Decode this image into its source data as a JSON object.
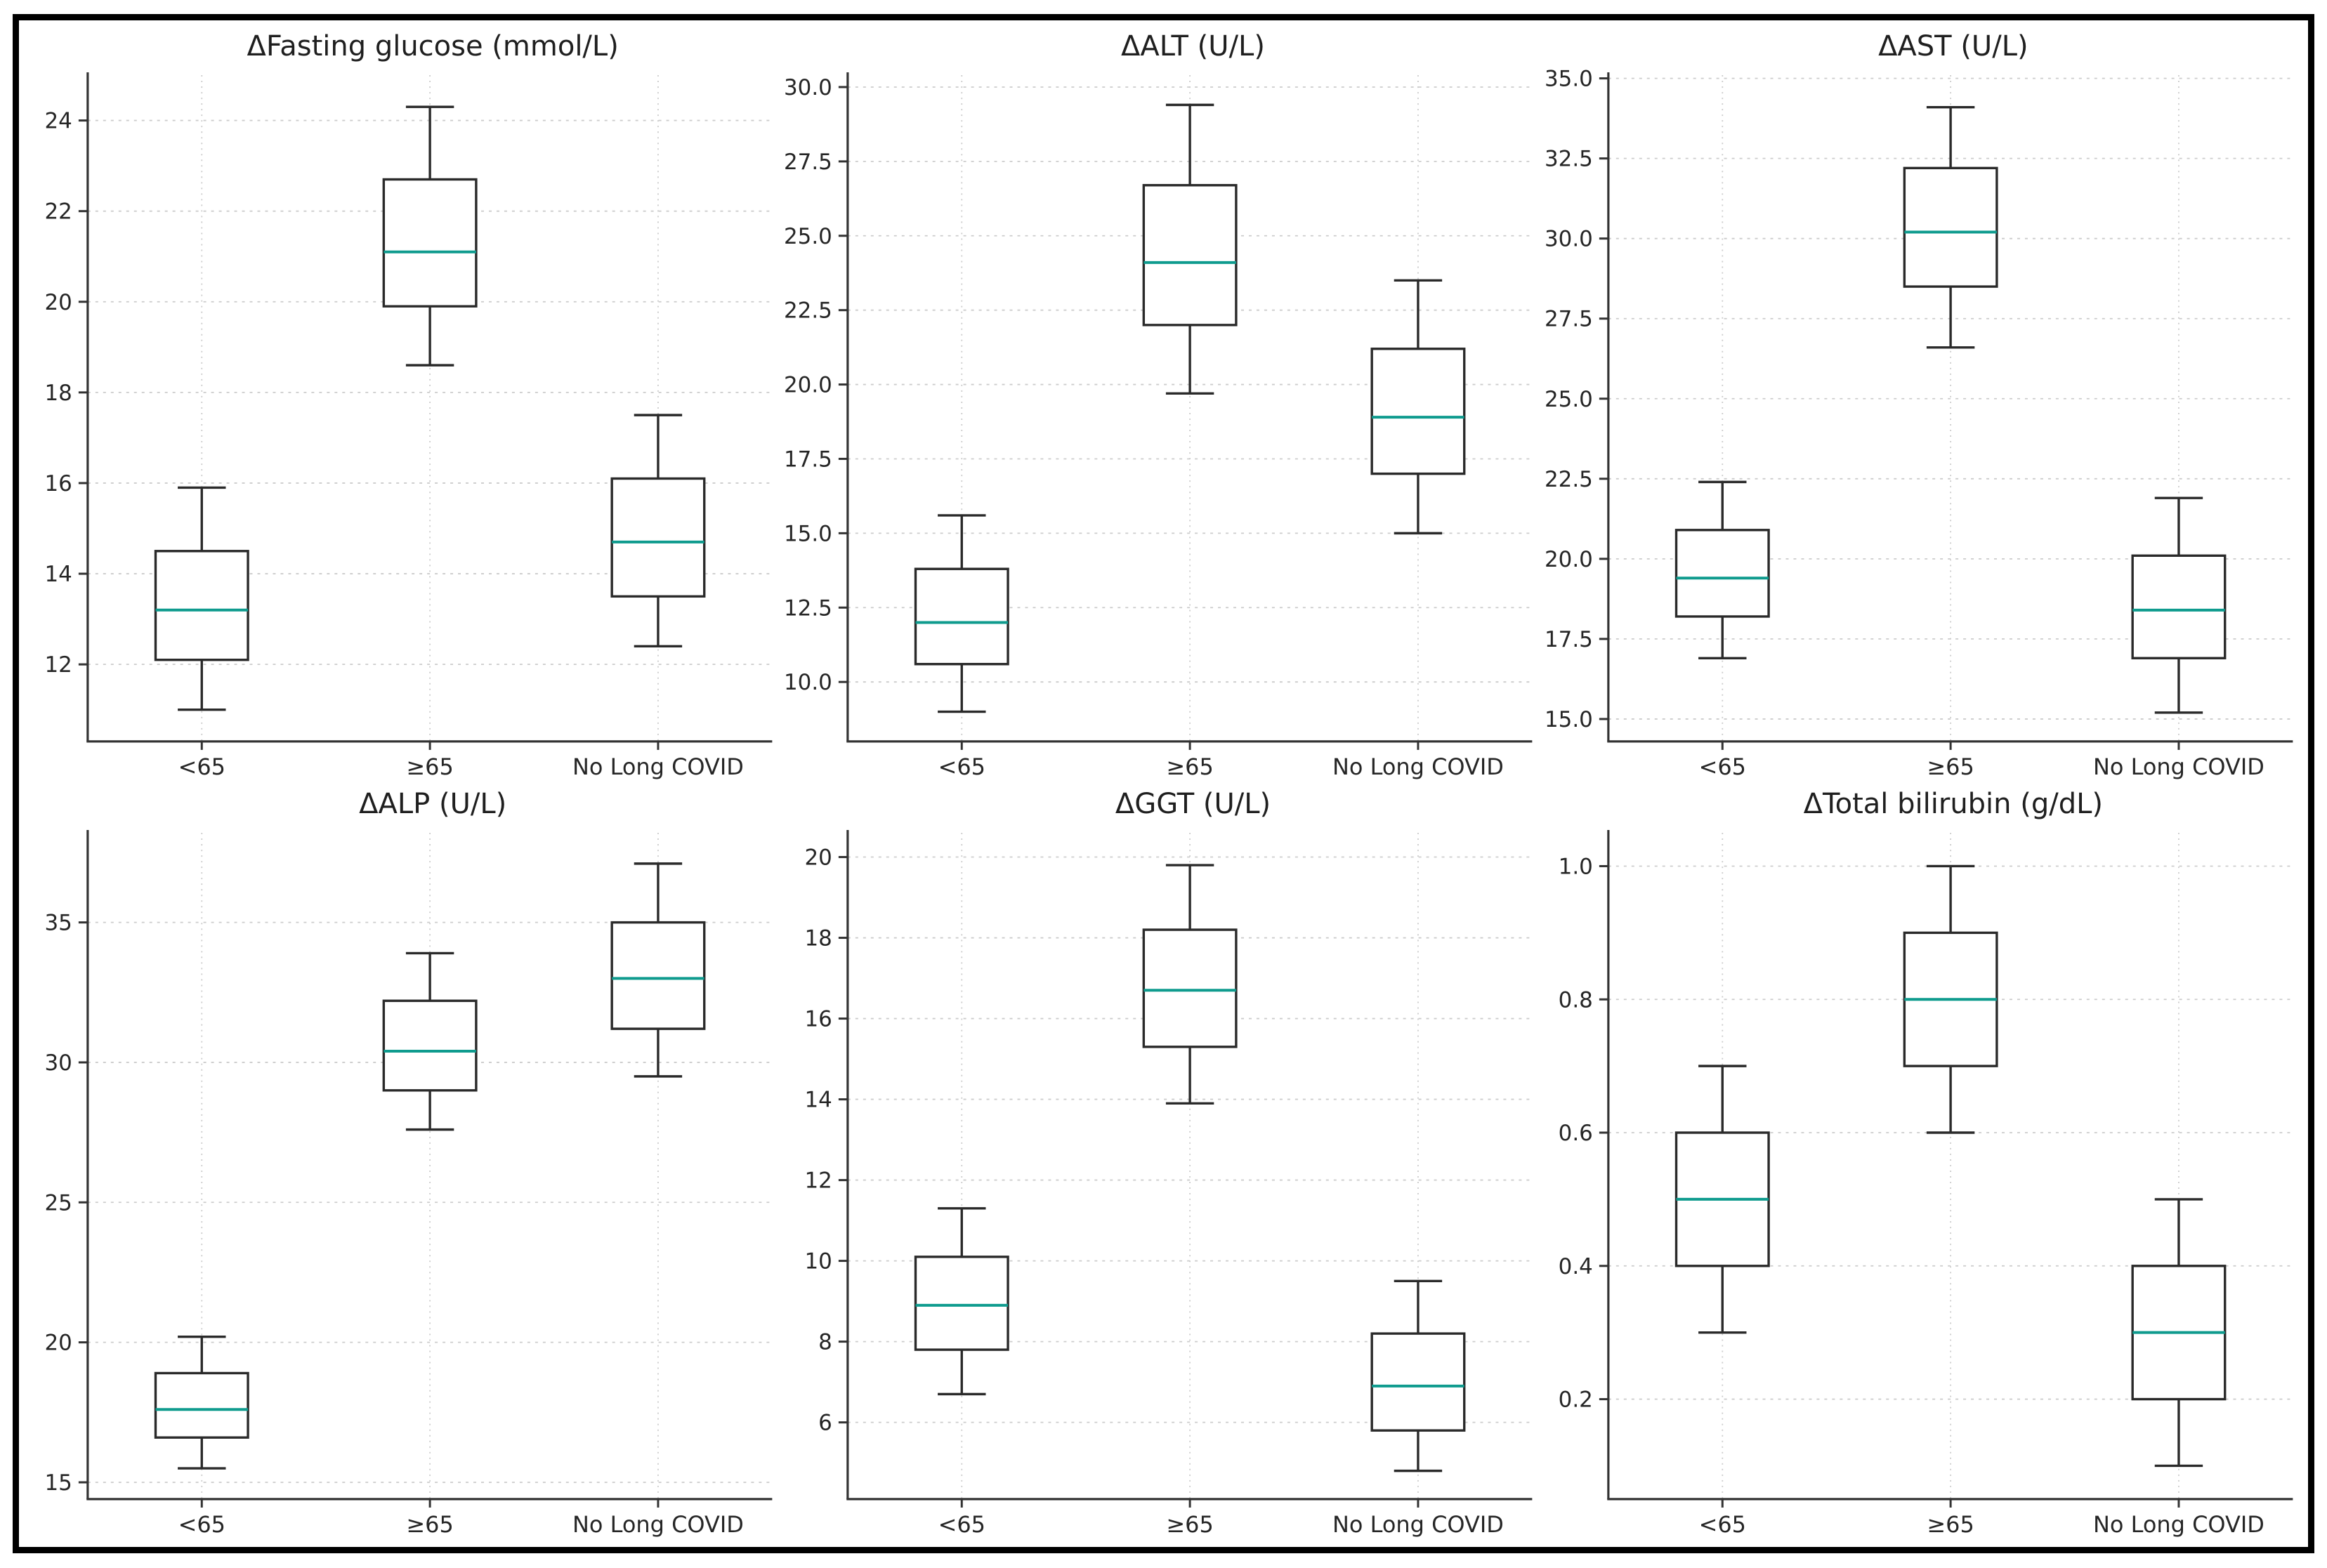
{
  "figure": {
    "background": "#ffffff",
    "border_color": "#000000"
  },
  "style": {
    "median_color": "#0f9b8e",
    "box_color": "#2a2a2a",
    "whisker_color": "#2a2a2a",
    "grid_color": "#cccccc",
    "axis_color": "#333333",
    "text_color": "#262626",
    "box_fill": "#ffffff"
  },
  "categories": [
    "<65",
    "≥65",
    "No Long COVID"
  ],
  "chart_data": [
    {
      "type": "box",
      "title": "ΔFasting glucose (mmol/L)",
      "categories": [
        "<65",
        "≥65",
        "No Long COVID"
      ],
      "grid": true,
      "legend": false,
      "ylim": [
        10.3,
        25.0
      ],
      "yticks": [
        12,
        14,
        16,
        18,
        20,
        22,
        24
      ],
      "ytick_labels": [
        "12",
        "14",
        "16",
        "18",
        "20",
        "22",
        "24"
      ],
      "boxes": [
        {
          "category": "<65",
          "whislo": 11.0,
          "q1": 12.1,
          "med": 13.2,
          "q3": 14.5,
          "whishi": 15.9
        },
        {
          "category": "≥65",
          "whislo": 18.6,
          "q1": 19.9,
          "med": 21.1,
          "q3": 22.7,
          "whishi": 24.3
        },
        {
          "category": "No Long COVID",
          "whislo": 12.4,
          "q1": 13.5,
          "med": 14.7,
          "q3": 16.1,
          "whishi": 17.5
        }
      ]
    },
    {
      "type": "box",
      "title": "ΔALT (U/L)",
      "categories": [
        "<65",
        "≥65",
        "No Long COVID"
      ],
      "grid": true,
      "legend": false,
      "ylim": [
        8.0,
        30.4
      ],
      "yticks": [
        10.0,
        12.5,
        15.0,
        17.5,
        20.0,
        22.5,
        25.0,
        27.5,
        30.0
      ],
      "ytick_labels": [
        "10.0",
        "12.5",
        "15.0",
        "17.5",
        "20.0",
        "22.5",
        "25.0",
        "27.5",
        "30.0"
      ],
      "boxes": [
        {
          "category": "<65",
          "whislo": 9.0,
          "q1": 10.6,
          "med": 12.0,
          "q3": 13.8,
          "whishi": 15.6
        },
        {
          "category": "≥65",
          "whislo": 19.7,
          "q1": 22.0,
          "med": 24.1,
          "q3": 26.7,
          "whishi": 29.4
        },
        {
          "category": "No Long COVID",
          "whislo": 15.0,
          "q1": 17.0,
          "med": 18.9,
          "q3": 21.2,
          "whishi": 23.5
        }
      ]
    },
    {
      "type": "box",
      "title": "ΔAST (U/L)",
      "categories": [
        "<65",
        "≥65",
        "No Long COVID"
      ],
      "grid": true,
      "legend": false,
      "ylim": [
        14.3,
        35.1
      ],
      "yticks": [
        15.0,
        17.5,
        20.0,
        22.5,
        25.0,
        27.5,
        30.0,
        32.5,
        35.0
      ],
      "ytick_labels": [
        "15.0",
        "17.5",
        "20.0",
        "22.5",
        "25.0",
        "27.5",
        "30.0",
        "32.5",
        "35.0"
      ],
      "boxes": [
        {
          "category": "<65",
          "whislo": 16.9,
          "q1": 18.2,
          "med": 19.4,
          "q3": 20.9,
          "whishi": 22.4
        },
        {
          "category": "≥65",
          "whislo": 26.6,
          "q1": 28.5,
          "med": 30.2,
          "q3": 32.2,
          "whishi": 34.1
        },
        {
          "category": "No Long COVID",
          "whislo": 15.2,
          "q1": 16.9,
          "med": 18.4,
          "q3": 20.1,
          "whishi": 21.9
        }
      ]
    },
    {
      "type": "box",
      "title": "ΔALP (U/L)",
      "categories": [
        "<65",
        "≥65",
        "No Long COVID"
      ],
      "grid": true,
      "legend": false,
      "ylim": [
        14.4,
        38.2
      ],
      "yticks": [
        15,
        20,
        25,
        30,
        35
      ],
      "ytick_labels": [
        "15",
        "20",
        "25",
        "30",
        "35"
      ],
      "boxes": [
        {
          "category": "<65",
          "whislo": 15.5,
          "q1": 16.6,
          "med": 17.6,
          "q3": 18.9,
          "whishi": 20.2
        },
        {
          "category": "≥65",
          "whislo": 27.6,
          "q1": 29.0,
          "med": 30.4,
          "q3": 32.2,
          "whishi": 33.9
        },
        {
          "category": "No Long COVID",
          "whislo": 29.5,
          "q1": 31.2,
          "med": 33.0,
          "q3": 35.0,
          "whishi": 37.1
        }
      ]
    },
    {
      "type": "box",
      "title": "ΔGGT (U/L)",
      "categories": [
        "<65",
        "≥65",
        "No Long COVID"
      ],
      "grid": true,
      "legend": false,
      "ylim": [
        4.1,
        20.6
      ],
      "yticks": [
        6,
        8,
        10,
        12,
        14,
        16,
        18,
        20
      ],
      "ytick_labels": [
        "6",
        "8",
        "10",
        "12",
        "14",
        "16",
        "18",
        "20"
      ],
      "boxes": [
        {
          "category": "<65",
          "whislo": 6.7,
          "q1": 7.8,
          "med": 8.9,
          "q3": 10.1,
          "whishi": 11.3
        },
        {
          "category": "≥65",
          "whislo": 13.9,
          "q1": 15.3,
          "med": 16.7,
          "q3": 18.2,
          "whishi": 19.8
        },
        {
          "category": "No Long COVID",
          "whislo": 4.8,
          "q1": 5.8,
          "med": 6.9,
          "q3": 8.2,
          "whishi": 9.5
        }
      ]
    },
    {
      "type": "box",
      "title": "ΔTotal bilirubin (g/dL)",
      "categories": [
        "<65",
        "≥65",
        "No Long COVID"
      ],
      "grid": true,
      "legend": false,
      "ylim": [
        0.05,
        1.05
      ],
      "yticks": [
        0.2,
        0.4,
        0.6,
        0.8,
        1.0
      ],
      "ytick_labels": [
        "0.2",
        "0.4",
        "0.6",
        "0.8",
        "1.0"
      ],
      "boxes": [
        {
          "category": "<65",
          "whislo": 0.3,
          "q1": 0.4,
          "med": 0.5,
          "q3": 0.6,
          "whishi": 0.7
        },
        {
          "category": "≥65",
          "whislo": 0.6,
          "q1": 0.7,
          "med": 0.8,
          "q3": 0.9,
          "whishi": 1.0
        },
        {
          "category": "No Long COVID",
          "whislo": 0.1,
          "q1": 0.2,
          "med": 0.3,
          "q3": 0.4,
          "whishi": 0.5
        }
      ]
    }
  ]
}
